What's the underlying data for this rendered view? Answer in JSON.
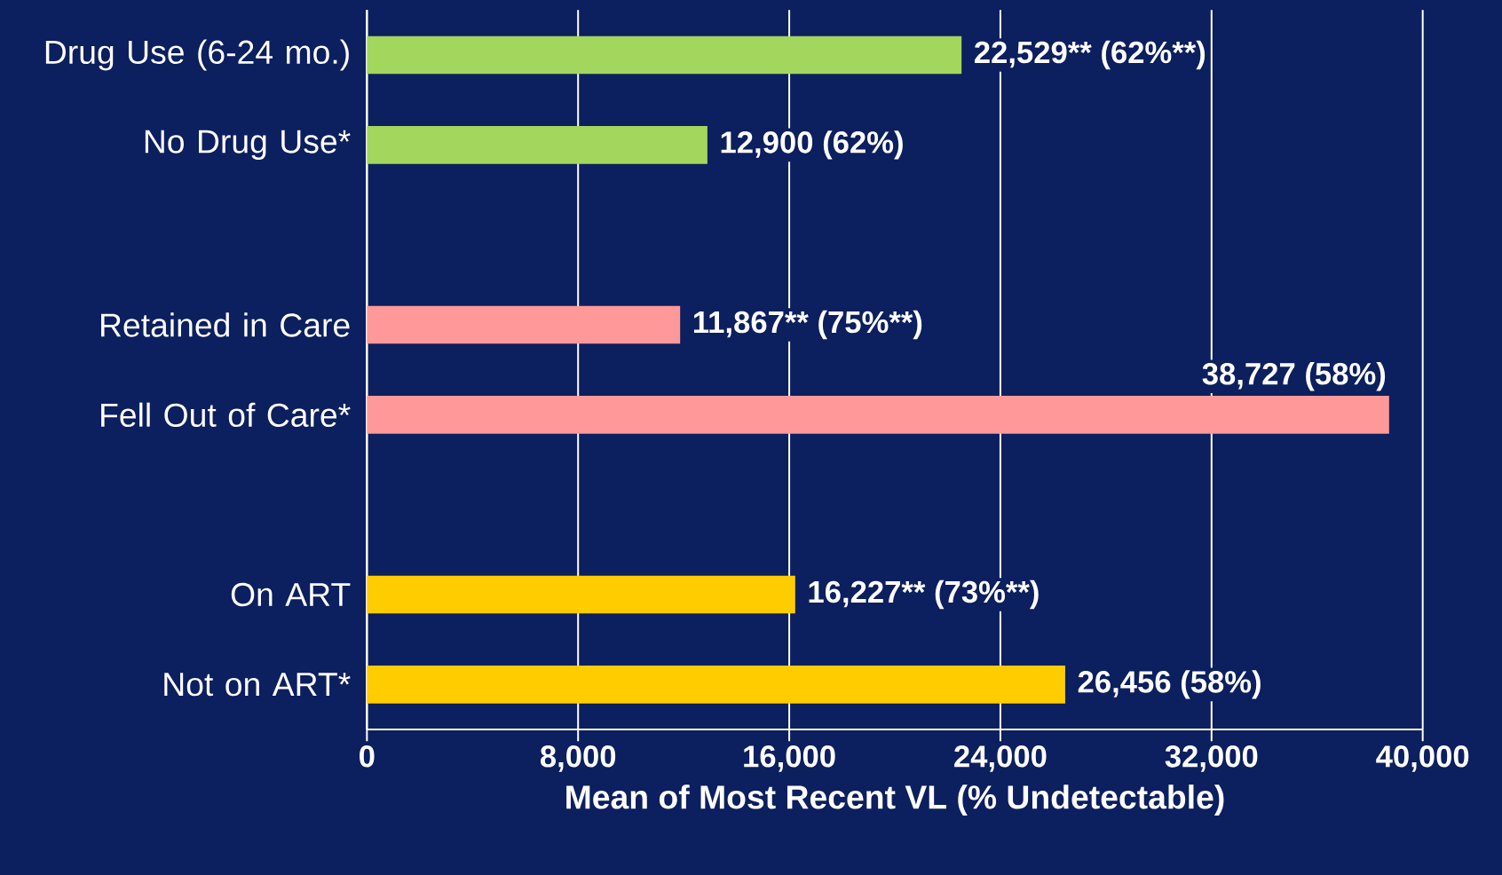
{
  "chart_data": {
    "type": "bar",
    "orientation": "horizontal",
    "categories": [
      "Drug Use (6-24 mo.)",
      "No Drug Use*",
      null,
      "Retained in Care",
      "Fell Out of Care*",
      null,
      "On ART",
      "Not on ART*"
    ],
    "values": [
      22529,
      12900,
      null,
      11867,
      38727,
      null,
      16227,
      26456
    ],
    "colors": [
      "#a3d65c",
      "#a3d65c",
      "#a3d65c",
      "#ff9999",
      "#ff9999",
      "#ffcc00",
      "#ffcc00",
      "#ffcc00"
    ],
    "value_labels": [
      "22,529**  (62%**)",
      "12,900  (62%)",
      null,
      "11,867**  (75%**)",
      "38,727  (58%)",
      null,
      "16,227**  (73%**)",
      "26,456  (58%)"
    ],
    "xlabel": "Mean of Most Recent VL (% Undetectable)",
    "xlim": [
      0,
      40000
    ],
    "xticks": [
      0,
      {
        "value": 8000,
        "label": "8,000"
      },
      {
        "value": 16000,
        "label": "16,000"
      },
      {
        "value": 24000,
        "label": "24,000"
      },
      {
        "value": 32000,
        "label": "32,000"
      },
      {
        "value": 40000,
        "label": "40,000"
      }
    ],
    "grid": "x"
  }
}
